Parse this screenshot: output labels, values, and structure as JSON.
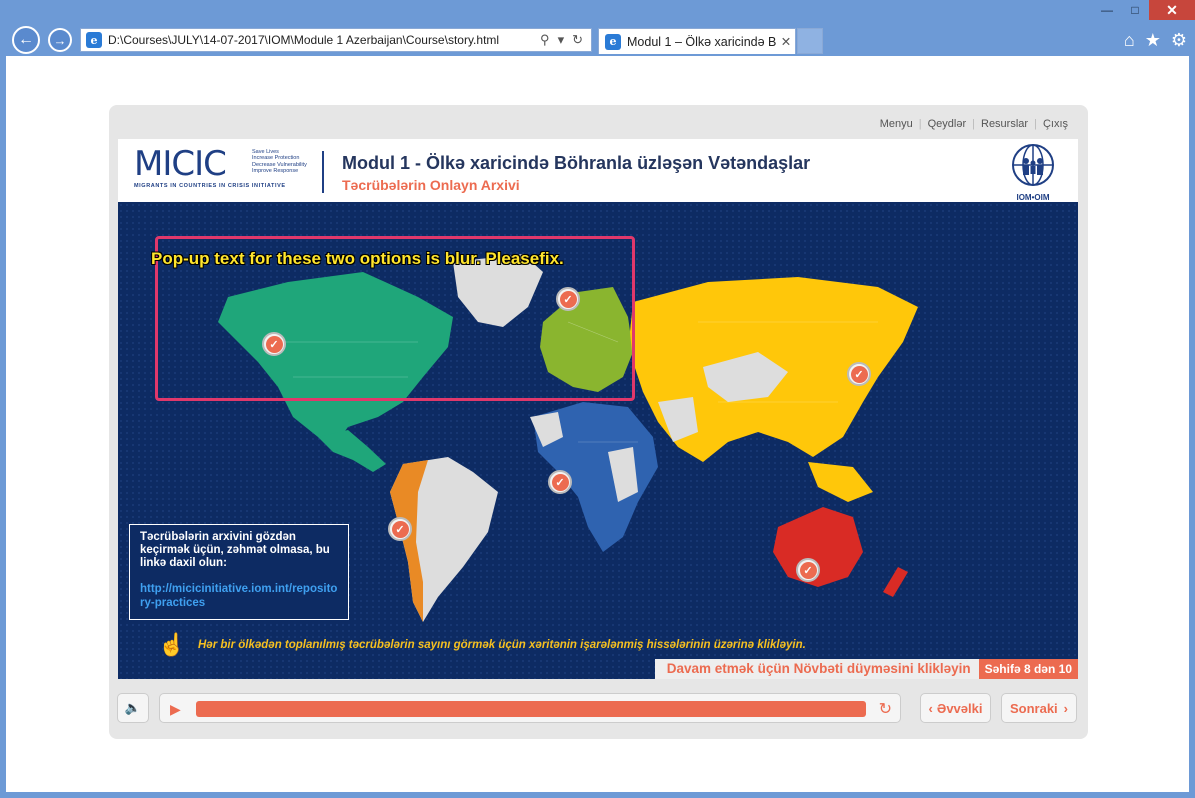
{
  "browser": {
    "address": "D:\\Courses\\JULY\\14-07-2017\\IOM\\Module 1 Azerbaijan\\Course\\story.html",
    "tab_title": "Modul 1 – Ölkə xaricində B...",
    "favicon": "e"
  },
  "course": {
    "topnav": [
      "Menyu",
      "Qeydlər",
      "Resurslar",
      "Çıxış"
    ],
    "logo_text": "MICIC",
    "logo_taglines": [
      "Save Lives",
      "Increase Protection",
      "Decrease Vulnerability",
      "Improve Response"
    ],
    "logo_subtitle": "MIGRANTS IN COUNTRIES IN CRISIS INITIATIVE",
    "title": "Modul 1 - Ölkə xaricində Böhranla üzləşən Vətəndaşlar",
    "subtitle": "Təcrübələrin Onlayn Arxivi",
    "iom_label": "IOM•OIM"
  },
  "annotation": {
    "text": "Pop-up text for these two options is blur. Pleasefix.",
    "color": "#e0386b"
  },
  "infobox": {
    "text": "Təcrübələrin arxivini gözdən keçirmək üçün, zəhmət olmasa, bu linkə daxil olun:",
    "link": "http://micicinitiative.iom.int/repository-practices"
  },
  "hint": "Hər bir ölkədən toplanılmış təcrübələrin sayını görmək üçün xəritənin işarələnmiş hissələrinin üzərinə klikləyin.",
  "footer": {
    "message": "Davam etmək üçün Növbəti düyməsini klikləyin",
    "page": "Səhifə 8 dən 10"
  },
  "controls": {
    "prev": "Əvvəlki",
    "next": "Sonraki",
    "progress": 1.0
  },
  "colors": {
    "accent": "#ec6b50",
    "north_america": "#1fa67a",
    "europe": "#8ab52f",
    "asia": "#ffc70a",
    "africa": "#2f63b0",
    "south_america": "#e98a25",
    "oceania": "#d92b25",
    "neutral": "#dddddd"
  }
}
